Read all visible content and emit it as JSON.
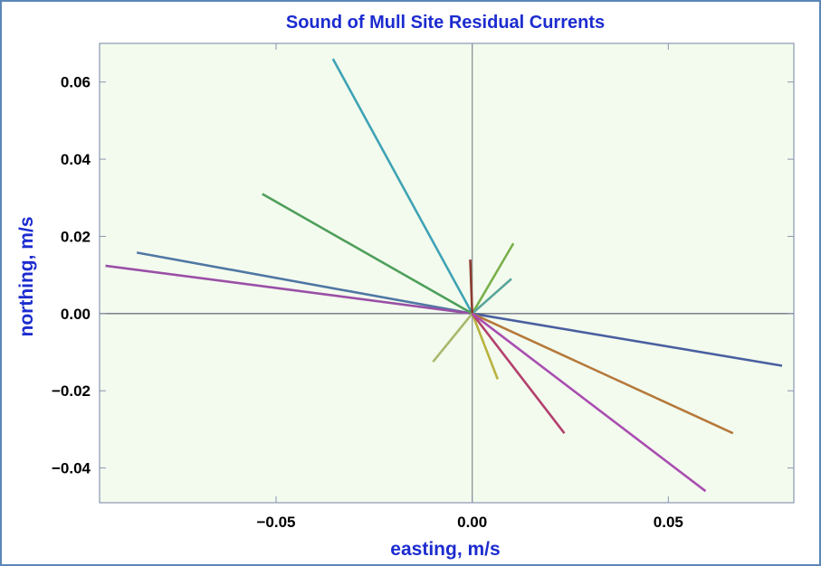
{
  "chart_data": {
    "type": "line",
    "title": "Sound of Mull Site Residual Currents",
    "xlabel": "easting, m/s",
    "ylabel": "northing, m/s",
    "xlim": [
      -0.095,
      0.082
    ],
    "ylim": [
      -0.049,
      0.07
    ],
    "x_ticks": [
      -0.05,
      0.0,
      0.05
    ],
    "x_tick_labels": [
      "−0.05",
      "0.00",
      "0.05"
    ],
    "y_ticks": [
      -0.04,
      -0.02,
      0.0,
      0.02,
      0.04,
      0.06
    ],
    "y_tick_labels": [
      "−0.04",
      "−0.02",
      "0.00",
      "0.02",
      "0.04",
      "0.06"
    ],
    "grid": false,
    "legend": "none",
    "background": "#f3fbee",
    "series": [
      {
        "x": [
          0,
          0.079
        ],
        "y": [
          0,
          -0.0135
        ],
        "color": "#4a5fa0"
      },
      {
        "x": [
          0,
          -0.0855
        ],
        "y": [
          0,
          0.0158
        ],
        "color": "#4f77a3"
      },
      {
        "x": [
          0,
          -0.0935
        ],
        "y": [
          0,
          0.0124
        ],
        "color": "#9a4fa6"
      },
      {
        "x": [
          0,
          -0.0355
        ],
        "y": [
          0,
          0.066
        ],
        "color": "#3fa3b5"
      },
      {
        "x": [
          0,
          -0.0535
        ],
        "y": [
          0,
          0.031
        ],
        "color": "#4f9f5b"
      },
      {
        "x": [
          0,
          0.0105
        ],
        "y": [
          0,
          0.0182
        ],
        "color": "#79b04a"
      },
      {
        "x": [
          0,
          0.01
        ],
        "y": [
          0,
          0.009
        ],
        "color": "#59a59a"
      },
      {
        "x": [
          0,
          -0.0005
        ],
        "y": [
          0,
          0.014
        ],
        "color": "#8b3c2f"
      },
      {
        "x": [
          0,
          -0.01
        ],
        "y": [
          0,
          -0.0125
        ],
        "color": "#a9b86d"
      },
      {
        "x": [
          0,
          0.0065
        ],
        "y": [
          0,
          -0.017
        ],
        "color": "#b9b23f"
      },
      {
        "x": [
          0,
          0.0665
        ],
        "y": [
          0,
          -0.031
        ],
        "color": "#b5793b"
      },
      {
        "x": [
          0,
          0.0235
        ],
        "y": [
          0,
          -0.031
        ],
        "color": "#b3406d"
      },
      {
        "x": [
          0,
          0.0595
        ],
        "y": [
          0,
          -0.046
        ],
        "color": "#a94db0"
      }
    ]
  }
}
